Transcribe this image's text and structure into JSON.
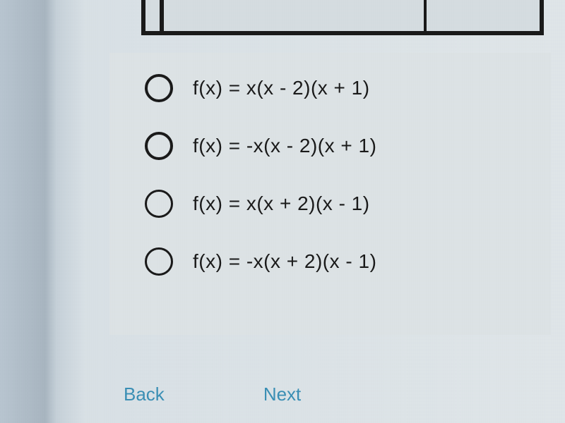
{
  "options": [
    {
      "label": "f(x) = x(x - 2)(x + 1)",
      "thickRing": true
    },
    {
      "label": "f(x) = -x(x - 2)(x + 1)",
      "thickRing": true
    },
    {
      "label": "f(x) = x(x + 2)(x - 1)",
      "thickRing": false
    },
    {
      "label": "f(x) = -x(x + 2)(x - 1)",
      "thickRing": false
    }
  ],
  "nav": {
    "back": "Back",
    "next": "Next"
  },
  "colors": {
    "text": "#1a1a1a",
    "navLink": "#3a8fb5",
    "cardBg": "#dce2e5"
  }
}
